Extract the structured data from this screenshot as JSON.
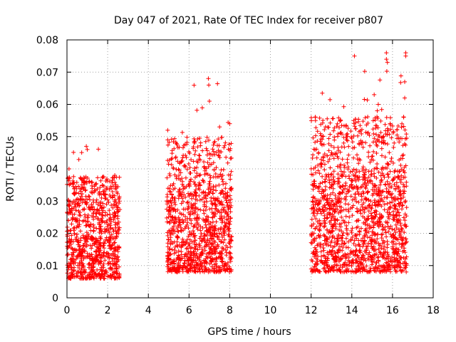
{
  "chart_data": {
    "type": "scatter",
    "title": "Day 047 of 2021, Rate Of TEC Index for receiver p807",
    "xlabel": "GPS time / hours",
    "ylabel": "ROTI / TECUs",
    "xlim": [
      0,
      18
    ],
    "ylim": [
      0,
      0.08
    ],
    "x_ticks": [
      0,
      2,
      4,
      6,
      8,
      10,
      12,
      14,
      16,
      18
    ],
    "x_tick_labels": [
      "0",
      "2",
      "4",
      "6",
      "8",
      "10",
      "12",
      "14",
      "16",
      "18"
    ],
    "y_ticks": [
      0,
      0.01,
      0.02,
      0.03,
      0.04,
      0.05,
      0.06,
      0.07,
      0.08
    ],
    "y_tick_labels": [
      "0",
      "0.01",
      "0.02",
      "0.03",
      "0.04",
      "0.05",
      "0.06",
      "0.07",
      "0.08"
    ],
    "grid": true,
    "marker": "+",
    "marker_color": "#ff0000",
    "series": [
      {
        "name": "ROTI",
        "segments": [
          {
            "x_range": [
              0.0,
              2.6
            ],
            "typical_range": [
              0.006,
              0.03
            ],
            "max_value": 0.047
          },
          {
            "x_range": [
              4.9,
              8.1
            ],
            "typical_range": [
              0.008,
              0.035
            ],
            "max_value": 0.068
          },
          {
            "x_range": [
              12.0,
              16.7
            ],
            "typical_range": [
              0.008,
              0.04
            ],
            "max_value": 0.076
          }
        ],
        "notable_points": [
          {
            "x": 0.1,
            "y": 0.04
          },
          {
            "x": 0.95,
            "y": 0.047
          },
          {
            "x": 1.0,
            "y": 0.046
          },
          {
            "x": 2.35,
            "y": 0.038
          },
          {
            "x": 4.95,
            "y": 0.052
          },
          {
            "x": 4.95,
            "y": 0.049
          },
          {
            "x": 6.95,
            "y": 0.068
          },
          {
            "x": 6.97,
            "y": 0.066
          },
          {
            "x": 7.0,
            "y": 0.061
          },
          {
            "x": 7.5,
            "y": 0.053
          },
          {
            "x": 8.0,
            "y": 0.054
          },
          {
            "x": 12.2,
            "y": 0.056
          },
          {
            "x": 13.6,
            "y": 0.048
          },
          {
            "x": 15.1,
            "y": 0.063
          },
          {
            "x": 15.25,
            "y": 0.058
          },
          {
            "x": 15.3,
            "y": 0.06
          },
          {
            "x": 15.7,
            "y": 0.076
          },
          {
            "x": 15.7,
            "y": 0.074
          },
          {
            "x": 15.75,
            "y": 0.073
          },
          {
            "x": 16.65,
            "y": 0.076
          },
          {
            "x": 16.65,
            "y": 0.075
          },
          {
            "x": 16.6,
            "y": 0.067
          },
          {
            "x": 16.6,
            "y": 0.062
          },
          {
            "x": 16.55,
            "y": 0.056
          }
        ]
      }
    ]
  }
}
